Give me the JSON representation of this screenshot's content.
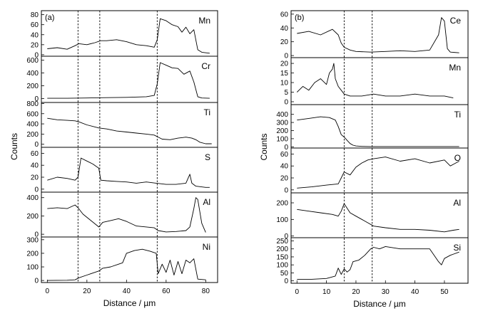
{
  "chart_data": [
    {
      "panel_label": "(a)",
      "type": "line",
      "xlabel": "Distance / µm",
      "ylabel": "Counts",
      "xlim": [
        -3,
        86
      ],
      "x_ticks": [
        0,
        20,
        40,
        60,
        80
      ],
      "x_tick_labels": [
        "0",
        "20",
        "40",
        "60",
        "80"
      ],
      "boundaries": [
        15.5,
        26.5,
        55.5
      ],
      "series": [
        {
          "name": "Mn",
          "ylim": [
            -3,
            88
          ],
          "y_ticks": [
            0,
            20,
            40,
            60,
            80
          ],
          "x": [
            0,
            5,
            10,
            14,
            16,
            20,
            24,
            27,
            30,
            35,
            40,
            45,
            50,
            54,
            55.5,
            57,
            60,
            63,
            66,
            68,
            70,
            72,
            74,
            76,
            78,
            82
          ],
          "values": [
            12,
            14,
            11,
            18,
            22,
            20,
            24,
            28,
            28,
            30,
            26,
            20,
            18,
            15,
            30,
            72,
            68,
            60,
            56,
            45,
            55,
            42,
            50,
            10,
            5,
            3
          ]
        },
        {
          "name": "Cr",
          "ylim": [
            -60,
            660
          ],
          "y_ticks": [
            0,
            200,
            400,
            600
          ],
          "x": [
            0,
            10,
            20,
            30,
            40,
            50,
            54,
            55.5,
            57,
            60,
            63,
            66,
            69,
            72,
            74,
            76,
            78,
            82
          ],
          "values": [
            5,
            5,
            10,
            15,
            20,
            30,
            50,
            230,
            560,
            520,
            480,
            470,
            380,
            430,
            260,
            30,
            10,
            5
          ]
        },
        {
          "name": "Ti",
          "ylim": [
            -60,
            820
          ],
          "y_ticks": [
            0,
            200,
            400,
            600,
            800
          ],
          "x": [
            0,
            5,
            10,
            14,
            16,
            20,
            26,
            30,
            35,
            40,
            45,
            50,
            54,
            55.5,
            58,
            62,
            66,
            70,
            73,
            75,
            77,
            80,
            83
          ],
          "values": [
            510,
            480,
            470,
            460,
            440,
            380,
            320,
            300,
            260,
            240,
            220,
            200,
            180,
            150,
            100,
            90,
            120,
            140,
            120,
            90,
            40,
            10,
            10
          ]
        },
        {
          "name": "S",
          "ylim": [
            -5,
            70
          ],
          "y_ticks": [
            0,
            20,
            40,
            60
          ],
          "x": [
            0,
            5,
            10,
            14,
            15.5,
            17,
            20,
            23,
            26,
            27,
            30,
            35,
            40,
            45,
            50,
            55,
            60,
            65,
            70,
            72,
            73,
            75,
            80,
            82
          ],
          "values": [
            15,
            20,
            18,
            15,
            20,
            52,
            47,
            42,
            35,
            15,
            14,
            13,
            12,
            10,
            12,
            10,
            8,
            8,
            10,
            25,
            10,
            5,
            3,
            3
          ]
        },
        {
          "name": "Al",
          "ylim": [
            -30,
            460
          ],
          "y_ticks": [
            0,
            200,
            400
          ],
          "x": [
            0,
            5,
            10,
            14,
            15.5,
            18,
            22,
            26,
            28,
            32,
            36,
            40,
            45,
            50,
            54,
            56,
            60,
            65,
            70,
            72,
            74,
            75,
            76,
            78,
            80
          ],
          "values": [
            280,
            290,
            280,
            320,
            290,
            220,
            150,
            80,
            130,
            150,
            170,
            140,
            90,
            80,
            70,
            40,
            25,
            30,
            40,
            80,
            280,
            400,
            380,
            120,
            20
          ]
        },
        {
          "name": "Ni",
          "ylim": [
            -15,
            320
          ],
          "y_ticks": [
            0,
            100,
            200,
            300
          ],
          "x": [
            0,
            10,
            14,
            16,
            20,
            24,
            26,
            28,
            32,
            36,
            38,
            40,
            44,
            48,
            52,
            55,
            56,
            58,
            60,
            62,
            64,
            66,
            68,
            70,
            72,
            74,
            76,
            80
          ],
          "values": [
            0,
            2,
            5,
            20,
            40,
            60,
            70,
            90,
            100,
            120,
            130,
            200,
            220,
            230,
            215,
            200,
            50,
            120,
            60,
            150,
            40,
            140,
            50,
            150,
            130,
            160,
            10,
            5
          ]
        }
      ]
    },
    {
      "panel_label": "(b)",
      "type": "line",
      "xlabel": "Distance / µm",
      "ylabel": "Counts",
      "xlim": [
        -2,
        58
      ],
      "x_ticks": [
        0,
        10,
        20,
        30,
        40,
        50
      ],
      "x_tick_labels": [
        "0",
        "10",
        "20",
        "30",
        "40",
        "50"
      ],
      "boundaries": [
        16,
        25.5
      ],
      "series": [
        {
          "name": "Ce",
          "ylim": [
            -3,
            65
          ],
          "y_ticks": [
            0,
            20,
            40,
            60
          ],
          "x": [
            0,
            4,
            8,
            12,
            14,
            15,
            16,
            18,
            20,
            25,
            30,
            35,
            40,
            45,
            48,
            49,
            50,
            51,
            52,
            55
          ],
          "values": [
            32,
            35,
            30,
            38,
            30,
            18,
            12,
            8,
            6,
            5,
            6,
            7,
            6,
            8,
            30,
            55,
            50,
            10,
            5,
            4
          ]
        },
        {
          "name": "Mn",
          "ylim": [
            -1.5,
            23
          ],
          "y_ticks": [
            0,
            5,
            10,
            15,
            20
          ],
          "x": [
            0,
            2,
            4,
            6,
            8,
            10,
            11,
            12,
            12.5,
            13,
            14,
            15,
            16,
            18,
            22,
            26,
            30,
            35,
            40,
            45,
            50,
            53
          ],
          "values": [
            5,
            8,
            6,
            10,
            12,
            9,
            15,
            17,
            20,
            12,
            8,
            6,
            4,
            3,
            3,
            4,
            3,
            3,
            4,
            3,
            3,
            2
          ]
        },
        {
          "name": "Ti",
          "ylim": [
            -15,
            520
          ],
          "y_ticks": [
            0,
            100,
            200,
            300,
            400
          ],
          "x": [
            0,
            4,
            8,
            11,
            13,
            14,
            15,
            16,
            17,
            18,
            19,
            20,
            22,
            25,
            30,
            40,
            50,
            55
          ],
          "values": [
            330,
            350,
            370,
            360,
            330,
            250,
            150,
            120,
            80,
            40,
            20,
            10,
            5,
            3,
            3,
            3,
            3,
            3
          ]
        },
        {
          "name": "O",
          "ylim": [
            -5,
            70
          ],
          "y_ticks": [
            0,
            20,
            40,
            60
          ],
          "x": [
            0,
            5,
            10,
            14,
            15,
            16,
            18,
            20,
            22,
            24,
            26,
            30,
            35,
            40,
            45,
            50,
            52,
            55
          ],
          "values": [
            3,
            5,
            8,
            10,
            20,
            30,
            25,
            38,
            45,
            50,
            52,
            55,
            48,
            52,
            45,
            50,
            40,
            48
          ]
        },
        {
          "name": "Al",
          "ylim": [
            -10,
            260
          ],
          "y_ticks": [
            0,
            100,
            200
          ],
          "x": [
            0,
            4,
            8,
            12,
            14,
            15,
            16,
            18,
            20,
            22,
            24,
            26,
            30,
            35,
            40,
            45,
            50,
            53,
            55
          ],
          "values": [
            160,
            150,
            140,
            130,
            120,
            150,
            195,
            140,
            120,
            100,
            80,
            60,
            50,
            40,
            40,
            35,
            25,
            35,
            40
          ]
        },
        {
          "name": "Si",
          "ylim": [
            -15,
            270
          ],
          "y_ticks": [
            0,
            50,
            100,
            150,
            200,
            250
          ],
          "x": [
            0,
            5,
            10,
            13,
            14,
            15,
            16,
            17,
            18,
            19,
            21,
            23,
            25,
            26,
            28,
            30,
            35,
            40,
            45,
            48,
            49,
            50,
            52,
            55
          ],
          "values": [
            10,
            10,
            15,
            30,
            80,
            40,
            75,
            55,
            70,
            120,
            130,
            160,
            200,
            210,
            200,
            215,
            200,
            200,
            200,
            120,
            100,
            140,
            160,
            180
          ]
        }
      ]
    }
  ]
}
